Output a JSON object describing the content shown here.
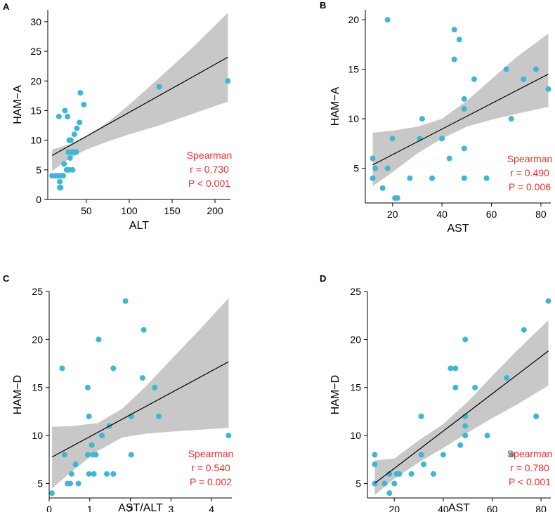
{
  "colors": {
    "point": "#3fb6d3",
    "stat": "#e8322c",
    "band": "#c8c8c8"
  },
  "chart_data": [
    {
      "type": "scatter",
      "letter": "A",
      "xlabel": "ALT",
      "ylabel": "HAM−A",
      "xlim": [
        5,
        218
      ],
      "ylim": [
        0,
        32
      ],
      "xticks": [
        50,
        100,
        150,
        200
      ],
      "yticks": [
        0,
        5,
        10,
        15,
        20,
        25,
        30
      ],
      "xtick_labels": [
        "50",
        "100",
        "150",
        "200"
      ],
      "ytick_labels": [
        "0",
        "5",
        "10",
        "15",
        "20",
        "25",
        "30"
      ],
      "points": [
        [
          10,
          4
        ],
        [
          14,
          4
        ],
        [
          17,
          4
        ],
        [
          18,
          14
        ],
        [
          19,
          2
        ],
        [
          20,
          2
        ],
        [
          19,
          3
        ],
        [
          21,
          4
        ],
        [
          23,
          4
        ],
        [
          24,
          6
        ],
        [
          25,
          15
        ],
        [
          28,
          14
        ],
        [
          27,
          5
        ],
        [
          29,
          8
        ],
        [
          30,
          10
        ],
        [
          31,
          7
        ],
        [
          30,
          5
        ],
        [
          32,
          10
        ],
        [
          33,
          8
        ],
        [
          34,
          5
        ],
        [
          35,
          8
        ],
        [
          36,
          11
        ],
        [
          37,
          8
        ],
        [
          38,
          8
        ],
        [
          39,
          12
        ],
        [
          42,
          13
        ],
        [
          43,
          18
        ],
        [
          47,
          16
        ],
        [
          135,
          19
        ],
        [
          215,
          20
        ]
      ],
      "fit": {
        "intercept": 6.6,
        "slope": 0.081
      },
      "band_upper": [
        [
          10,
          8.4
        ],
        [
          30,
          9.3
        ],
        [
          50,
          10.7
        ],
        [
          75,
          13.0
        ],
        [
          100,
          16.0
        ],
        [
          135,
          20.5
        ],
        [
          175,
          25.8
        ],
        [
          215,
          31.5
        ]
      ],
      "band_lower": [
        [
          10,
          4.8
        ],
        [
          30,
          6.9
        ],
        [
          50,
          8.4
        ],
        [
          75,
          9.8
        ],
        [
          100,
          11.0
        ],
        [
          135,
          12.5
        ],
        [
          175,
          14.5
        ],
        [
          215,
          16.5
        ]
      ],
      "stats": {
        "title": "Spearman",
        "r": "r = 0.730",
        "p": "P < 0.001"
      }
    },
    {
      "type": "scatter",
      "letter": "B",
      "xlabel": "AST",
      "ylabel": "HAM−A",
      "xlim": [
        9,
        84
      ],
      "ylim": [
        1.5,
        21
      ],
      "xticks": [
        20,
        40,
        60,
        80
      ],
      "yticks": [
        5,
        10,
        15,
        20
      ],
      "xtick_labels": [
        "20",
        "40",
        "60",
        "80"
      ],
      "ytick_labels": [
        "5",
        "10",
        "15",
        "20"
      ],
      "points": [
        [
          12,
          6
        ],
        [
          12,
          4
        ],
        [
          13,
          5
        ],
        [
          16,
          3
        ],
        [
          18,
          20
        ],
        [
          18,
          5
        ],
        [
          20,
          8
        ],
        [
          21,
          2
        ],
        [
          22,
          2
        ],
        [
          27,
          4
        ],
        [
          31,
          8
        ],
        [
          32,
          10
        ],
        [
          36,
          4
        ],
        [
          40,
          8
        ],
        [
          43,
          6
        ],
        [
          45,
          19
        ],
        [
          45,
          16
        ],
        [
          47,
          18
        ],
        [
          49,
          12
        ],
        [
          49,
          11
        ],
        [
          49,
          7
        ],
        [
          49,
          4
        ],
        [
          53,
          14
        ],
        [
          58,
          4
        ],
        [
          66,
          15
        ],
        [
          68,
          10
        ],
        [
          73,
          14
        ],
        [
          78,
          15
        ],
        [
          83,
          13
        ]
      ],
      "fit": {
        "intercept": 3.8,
        "slope": 0.129
      },
      "band_upper": [
        [
          12,
          8.6
        ],
        [
          20,
          8.8
        ],
        [
          30,
          9.2
        ],
        [
          40,
          10.0
        ],
        [
          50,
          11.8
        ],
        [
          60,
          14.0
        ],
        [
          70,
          16.2
        ],
        [
          83,
          18.6
        ]
      ],
      "band_lower": [
        [
          12,
          3.2
        ],
        [
          20,
          4.6
        ],
        [
          30,
          6.5
        ],
        [
          40,
          8.0
        ],
        [
          50,
          9.2
        ],
        [
          60,
          9.9
        ],
        [
          70,
          10.5
        ],
        [
          83,
          11.2
        ]
      ],
      "stats": {
        "title": "Spearman",
        "r": "r = 0.490",
        "p": "P = 0.006"
      }
    },
    {
      "type": "scatter",
      "letter": "C",
      "xlabel": "AST/ALT",
      "ylabel": "HAM−D",
      "xlim": [
        0,
        4.5
      ],
      "ylim": [
        3.5,
        25
      ],
      "xticks": [
        0,
        1,
        2,
        3,
        4
      ],
      "yticks": [
        5,
        10,
        15,
        20,
        25
      ],
      "xtick_labels": [
        "0",
        "1",
        "2",
        "3",
        "4"
      ],
      "ytick_labels": [
        "5",
        "10",
        "15",
        "20",
        "25"
      ],
      "points": [
        [
          0.07,
          4
        ],
        [
          0.32,
          17
        ],
        [
          0.38,
          8
        ],
        [
          0.45,
          5
        ],
        [
          0.52,
          5
        ],
        [
          0.55,
          6
        ],
        [
          0.65,
          7
        ],
        [
          0.72,
          5
        ],
        [
          0.95,
          15
        ],
        [
          0.95,
          8
        ],
        [
          0.98,
          12
        ],
        [
          0.98,
          6
        ],
        [
          1.05,
          9
        ],
        [
          1.08,
          8
        ],
        [
          1.1,
          6
        ],
        [
          1.15,
          8
        ],
        [
          1.22,
          20
        ],
        [
          1.3,
          10
        ],
        [
          1.42,
          6
        ],
        [
          1.48,
          11
        ],
        [
          1.58,
          17
        ],
        [
          1.58,
          6
        ],
        [
          1.88,
          24
        ],
        [
          2.02,
          12
        ],
        [
          2.02,
          8
        ],
        [
          2.3,
          16
        ],
        [
          2.33,
          21
        ],
        [
          2.6,
          15
        ],
        [
          2.7,
          12
        ],
        [
          4.42,
          10
        ]
      ],
      "fit": {
        "intercept": 7.6,
        "slope": 2.28
      },
      "band_upper": [
        [
          0.07,
          10.9
        ],
        [
          0.6,
          11.0
        ],
        [
          1.2,
          11.3
        ],
        [
          1.8,
          12.8
        ],
        [
          2.4,
          15.2
        ],
        [
          3.0,
          17.9
        ],
        [
          3.7,
          21.0
        ],
        [
          4.42,
          24.3
        ]
      ],
      "band_lower": [
        [
          0.07,
          4.5
        ],
        [
          0.6,
          6.4
        ],
        [
          1.2,
          8.4
        ],
        [
          1.8,
          9.8
        ],
        [
          2.4,
          10.2
        ],
        [
          3.0,
          10.4
        ],
        [
          3.7,
          10.6
        ],
        [
          4.42,
          10.8
        ]
      ],
      "stats": {
        "title": "Spearman",
        "r": "r = 0.540",
        "p": "P = 0.002"
      }
    },
    {
      "type": "scatter",
      "letter": "D",
      "xlabel": "AST",
      "ylabel": "HAM−D",
      "xlim": [
        9,
        84
      ],
      "ylim": [
        3.5,
        25
      ],
      "xticks": [
        20,
        40,
        60,
        80
      ],
      "yticks": [
        5,
        10,
        15,
        20,
        25
      ],
      "xtick_labels": [
        "20",
        "40",
        "60",
        "80"
      ],
      "ytick_labels": [
        "5",
        "10",
        "15",
        "20",
        "25"
      ],
      "points": [
        [
          12,
          8
        ],
        [
          12,
          7
        ],
        [
          12,
          5
        ],
        [
          16,
          5
        ],
        [
          18,
          6
        ],
        [
          18,
          4
        ],
        [
          20,
          5
        ],
        [
          21,
          6
        ],
        [
          22,
          6
        ],
        [
          27,
          6
        ],
        [
          31,
          12
        ],
        [
          32,
          7
        ],
        [
          31,
          8
        ],
        [
          36,
          6
        ],
        [
          40,
          8
        ],
        [
          43,
          17
        ],
        [
          45,
          17
        ],
        [
          45,
          15
        ],
        [
          47,
          9
        ],
        [
          49,
          20
        ],
        [
          49,
          11
        ],
        [
          49,
          12
        ],
        [
          49,
          10
        ],
        [
          53,
          15
        ],
        [
          58,
          10
        ],
        [
          66,
          16
        ],
        [
          68,
          8
        ],
        [
          73,
          21
        ],
        [
          78,
          12
        ],
        [
          83,
          24
        ]
      ],
      "fit": {
        "intercept": 2.7,
        "slope": 0.194
      },
      "band_upper": [
        [
          12,
          7.4
        ],
        [
          20,
          7.6
        ],
        [
          30,
          9.5
        ],
        [
          40,
          11.2
        ],
        [
          50,
          13.5
        ],
        [
          60,
          16.2
        ],
        [
          70,
          18.8
        ],
        [
          83,
          22.0
        ]
      ],
      "band_lower": [
        [
          12,
          3.8
        ],
        [
          20,
          5.5
        ],
        [
          30,
          7.2
        ],
        [
          40,
          8.7
        ],
        [
          50,
          10.3
        ],
        [
          60,
          11.8
        ],
        [
          70,
          13.2
        ],
        [
          83,
          15.2
        ]
      ],
      "stats": {
        "title": "Spearman",
        "r": "r = 0.780",
        "p": "P < 0.001"
      }
    }
  ]
}
